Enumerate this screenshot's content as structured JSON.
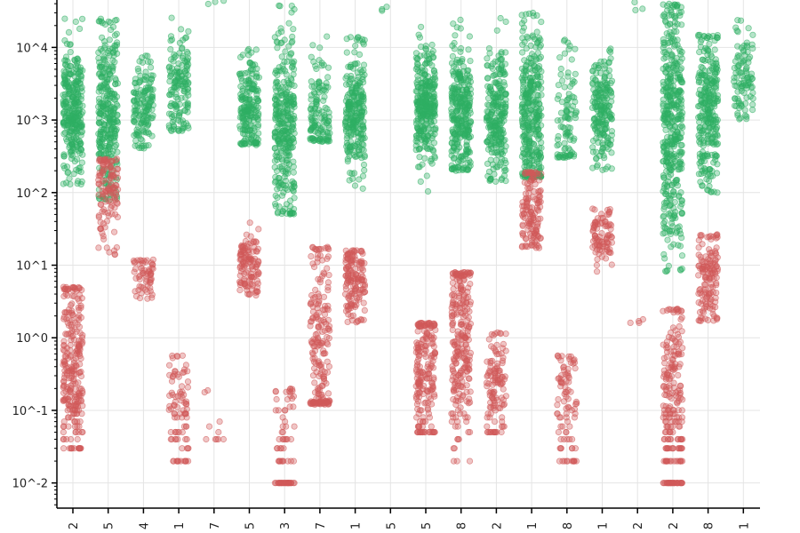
{
  "chart_data": {
    "type": "scatter",
    "y_scale": "log",
    "ylim": [
      0.0045,
      45000
    ],
    "y_ticks": [
      {
        "value": 0.01,
        "label": "10^-2"
      },
      {
        "value": 0.1,
        "label": "10^-1"
      },
      {
        "value": 1,
        "label": "10^0"
      },
      {
        "value": 10,
        "label": "10^1"
      },
      {
        "value": 100,
        "label": "10^2"
      },
      {
        "value": 1000,
        "label": "10^3"
      },
      {
        "value": 10000,
        "label": "10^4"
      }
    ],
    "categories": [
      "2",
      "5",
      "4",
      "1",
      "7",
      "5",
      "3",
      "7",
      "1",
      "5",
      "5",
      "8",
      "2",
      "1",
      "8",
      "1",
      "2",
      "2",
      "8",
      "1"
    ],
    "grid": true,
    "series": [
      {
        "color": "#2eaf63",
        "points_per_category": [
          300,
          300,
          150,
          150,
          3,
          200,
          320,
          130,
          250,
          3,
          300,
          300,
          250,
          350,
          100,
          200,
          3,
          420,
          280,
          100
        ],
        "center": [
          1300,
          1200,
          1500,
          2800,
          40000,
          1400,
          850,
          1200,
          1300,
          30000,
          1500,
          1300,
          1200,
          1000,
          900,
          1400,
          30000,
          900,
          1200,
          3500
        ],
        "spread": [
          0.22,
          0.28,
          0.15,
          0.18,
          0.05,
          0.16,
          0.32,
          0.18,
          0.18,
          0.05,
          0.18,
          0.22,
          0.22,
          0.3,
          0.22,
          0.18,
          0.05,
          0.42,
          0.26,
          0.16
        ],
        "lo": [
          130,
          80,
          400,
          700,
          20000,
          450,
          50,
          500,
          30,
          20000,
          100,
          200,
          140,
          160,
          300,
          200,
          20000,
          8,
          100,
          1000
        ],
        "hi": [
          25000,
          25000,
          8000,
          35000,
          45000,
          12000,
          40000,
          15000,
          14000,
          45000,
          30000,
          30000,
          35000,
          30000,
          15000,
          10000,
          45000,
          40000,
          15000,
          25000
        ]
      },
      {
        "color": "#d05a5a",
        "points_per_category": [
          260,
          120,
          60,
          90,
          10,
          120,
          80,
          200,
          150,
          0,
          200,
          250,
          120,
          140,
          90,
          90,
          4,
          230,
          140,
          0
        ],
        "center": [
          0.4,
          110,
          7,
          0.09,
          0.05,
          10,
          0.03,
          0.7,
          6,
          1,
          0.35,
          1,
          0.22,
          60,
          0.1,
          25,
          1,
          0.12,
          6,
          1
        ],
        "spread": [
          0.3,
          0.2,
          0.08,
          0.2,
          0.15,
          0.12,
          0.25,
          0.4,
          0.14,
          0.1,
          0.3,
          0.35,
          0.22,
          0.2,
          0.25,
          0.09,
          0.3,
          0.35,
          0.15,
          0.1
        ],
        "lo": [
          0.03,
          14,
          2.8,
          0.02,
          0.04,
          3.8,
          0.01,
          0.12,
          1.6,
          1,
          0.05,
          0.02,
          0.05,
          17,
          0.02,
          8,
          1.6,
          0.01,
          1.7,
          1
        ],
        "hi": [
          5,
          300,
          12,
          0.6,
          0.2,
          50,
          0.2,
          18,
          16,
          1,
          1.6,
          8,
          1.2,
          200,
          0.6,
          60,
          4.7,
          2.5,
          27,
          1
        ]
      }
    ]
  }
}
